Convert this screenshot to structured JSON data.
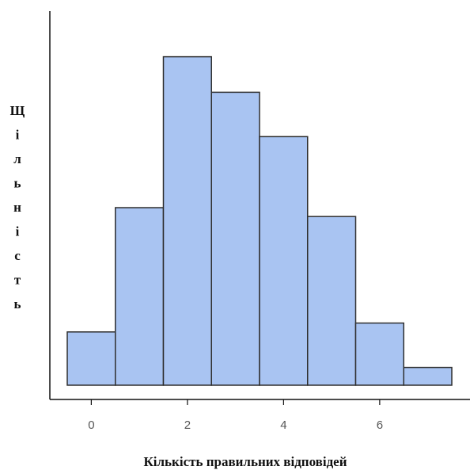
{
  "chart_data": {
    "type": "bar",
    "subtype": "histogram",
    "xlabel": "Кількість правильних відповідей",
    "ylabel": "Щільність",
    "x": [
      0,
      1,
      2,
      3,
      4,
      5,
      6,
      7
    ],
    "values": [
      0.06,
      0.2,
      0.37,
      0.33,
      0.28,
      0.19,
      0.07,
      0.02
    ],
    "bin_width": 1,
    "xlim": [
      -0.5,
      7.5
    ],
    "ylim": [
      0,
      0.4
    ],
    "x_ticks": [
      0,
      2,
      4,
      6
    ],
    "x_tick_labels": [
      "0",
      "2",
      "4",
      "6"
    ],
    "y_ticks_shown": false,
    "grid": false,
    "colors": {
      "bar_fill": "#a9c4f2",
      "bar_edge": "#2f2f2f",
      "axis": "#111111"
    }
  }
}
